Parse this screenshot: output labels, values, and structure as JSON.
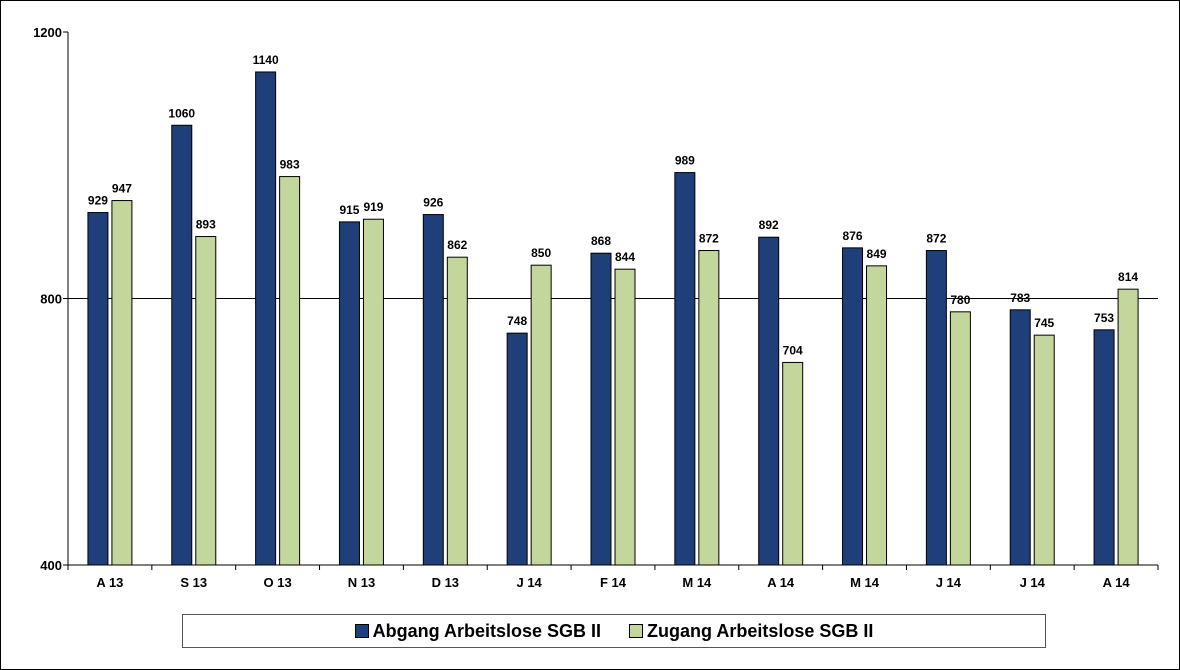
{
  "chart_data": {
    "type": "bar",
    "title": "",
    "xlabel": "",
    "ylabel": "",
    "categories": [
      "A 13",
      "S 13",
      "O 13",
      "N 13",
      "D 13",
      "J 14",
      "F 14",
      "M 14",
      "A 14",
      "M 14",
      "J 14",
      "J 14",
      "A 14"
    ],
    "series": [
      {
        "name": "Abgang Arbeitslose SGB II",
        "color": "#1F3F7A",
        "values": [
          929,
          1060,
          1140,
          915,
          926,
          748,
          868,
          989,
          892,
          876,
          872,
          783,
          753
        ]
      },
      {
        "name": "Zugang Arbeitslose SGB II",
        "color": "#C3D69B",
        "values": [
          947,
          893,
          983,
          919,
          862,
          850,
          844,
          872,
          704,
          849,
          780,
          745,
          814
        ]
      }
    ],
    "ylim": [
      400,
      1200
    ],
    "yticks": [
      400,
      800,
      1200
    ],
    "ytick_labels": [
      "400",
      "800",
      "1200"
    ],
    "gridlines": [
      800
    ],
    "legend_position": "bottom"
  }
}
